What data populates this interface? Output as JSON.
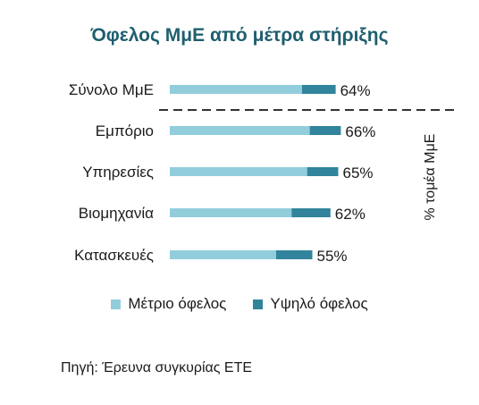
{
  "chart_data": {
    "type": "bar",
    "orientation": "horizontal",
    "stacked": true,
    "title": "Όφελος ΜμΕ από μέτρα στήριξης",
    "categories": [
      "Σύνολο ΜμΕ",
      "Εμπόριο",
      "Υπηρεσίες",
      "Βιομηχανία",
      "Κατασκευές"
    ],
    "series": [
      {
        "name": "Μέτριο όφελος",
        "color": "#92cddc",
        "values": [
          51,
          54,
          53,
          47,
          41
        ]
      },
      {
        "name": "Υψηλό όφελος",
        "color": "#31849b",
        "values": [
          13,
          12,
          12,
          15,
          14
        ]
      }
    ],
    "totals_labels": [
      "64%",
      "66%",
      "65%",
      "62%",
      "55%"
    ],
    "xlim": [
      0,
      100
    ],
    "side_axis_label": "% τομέα ΜμΕ",
    "separator": "dashed line below Σύνολο ΜμΕ",
    "legend_position": "bottom",
    "grid": false
  },
  "source_note": "Πηγή: Έρευνα συγκυρίας ΕΤΕ"
}
